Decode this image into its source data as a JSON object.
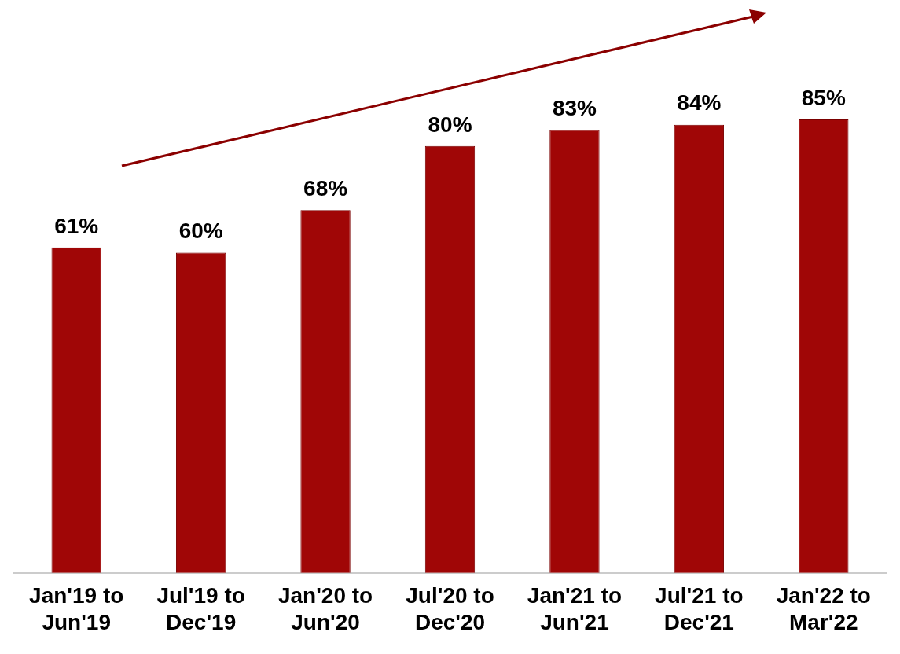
{
  "chart_data": {
    "type": "bar",
    "categories": [
      "Jan'19 to Jun'19",
      "Jul'19 to Dec'19",
      "Jan'20 to Jun'20",
      "Jul'20 to Dec'20",
      "Jan'21 to Jun'21",
      "Jul'21 to Dec'21",
      "Jan'22 to Mar'22"
    ],
    "values": [
      61,
      60,
      68,
      80,
      83,
      84,
      85
    ],
    "value_labels": [
      "61%",
      "60%",
      "68%",
      "80%",
      "83%",
      "84%",
      "85%"
    ],
    "color": "#a00606",
    "grid": false,
    "legend": false
  }
}
